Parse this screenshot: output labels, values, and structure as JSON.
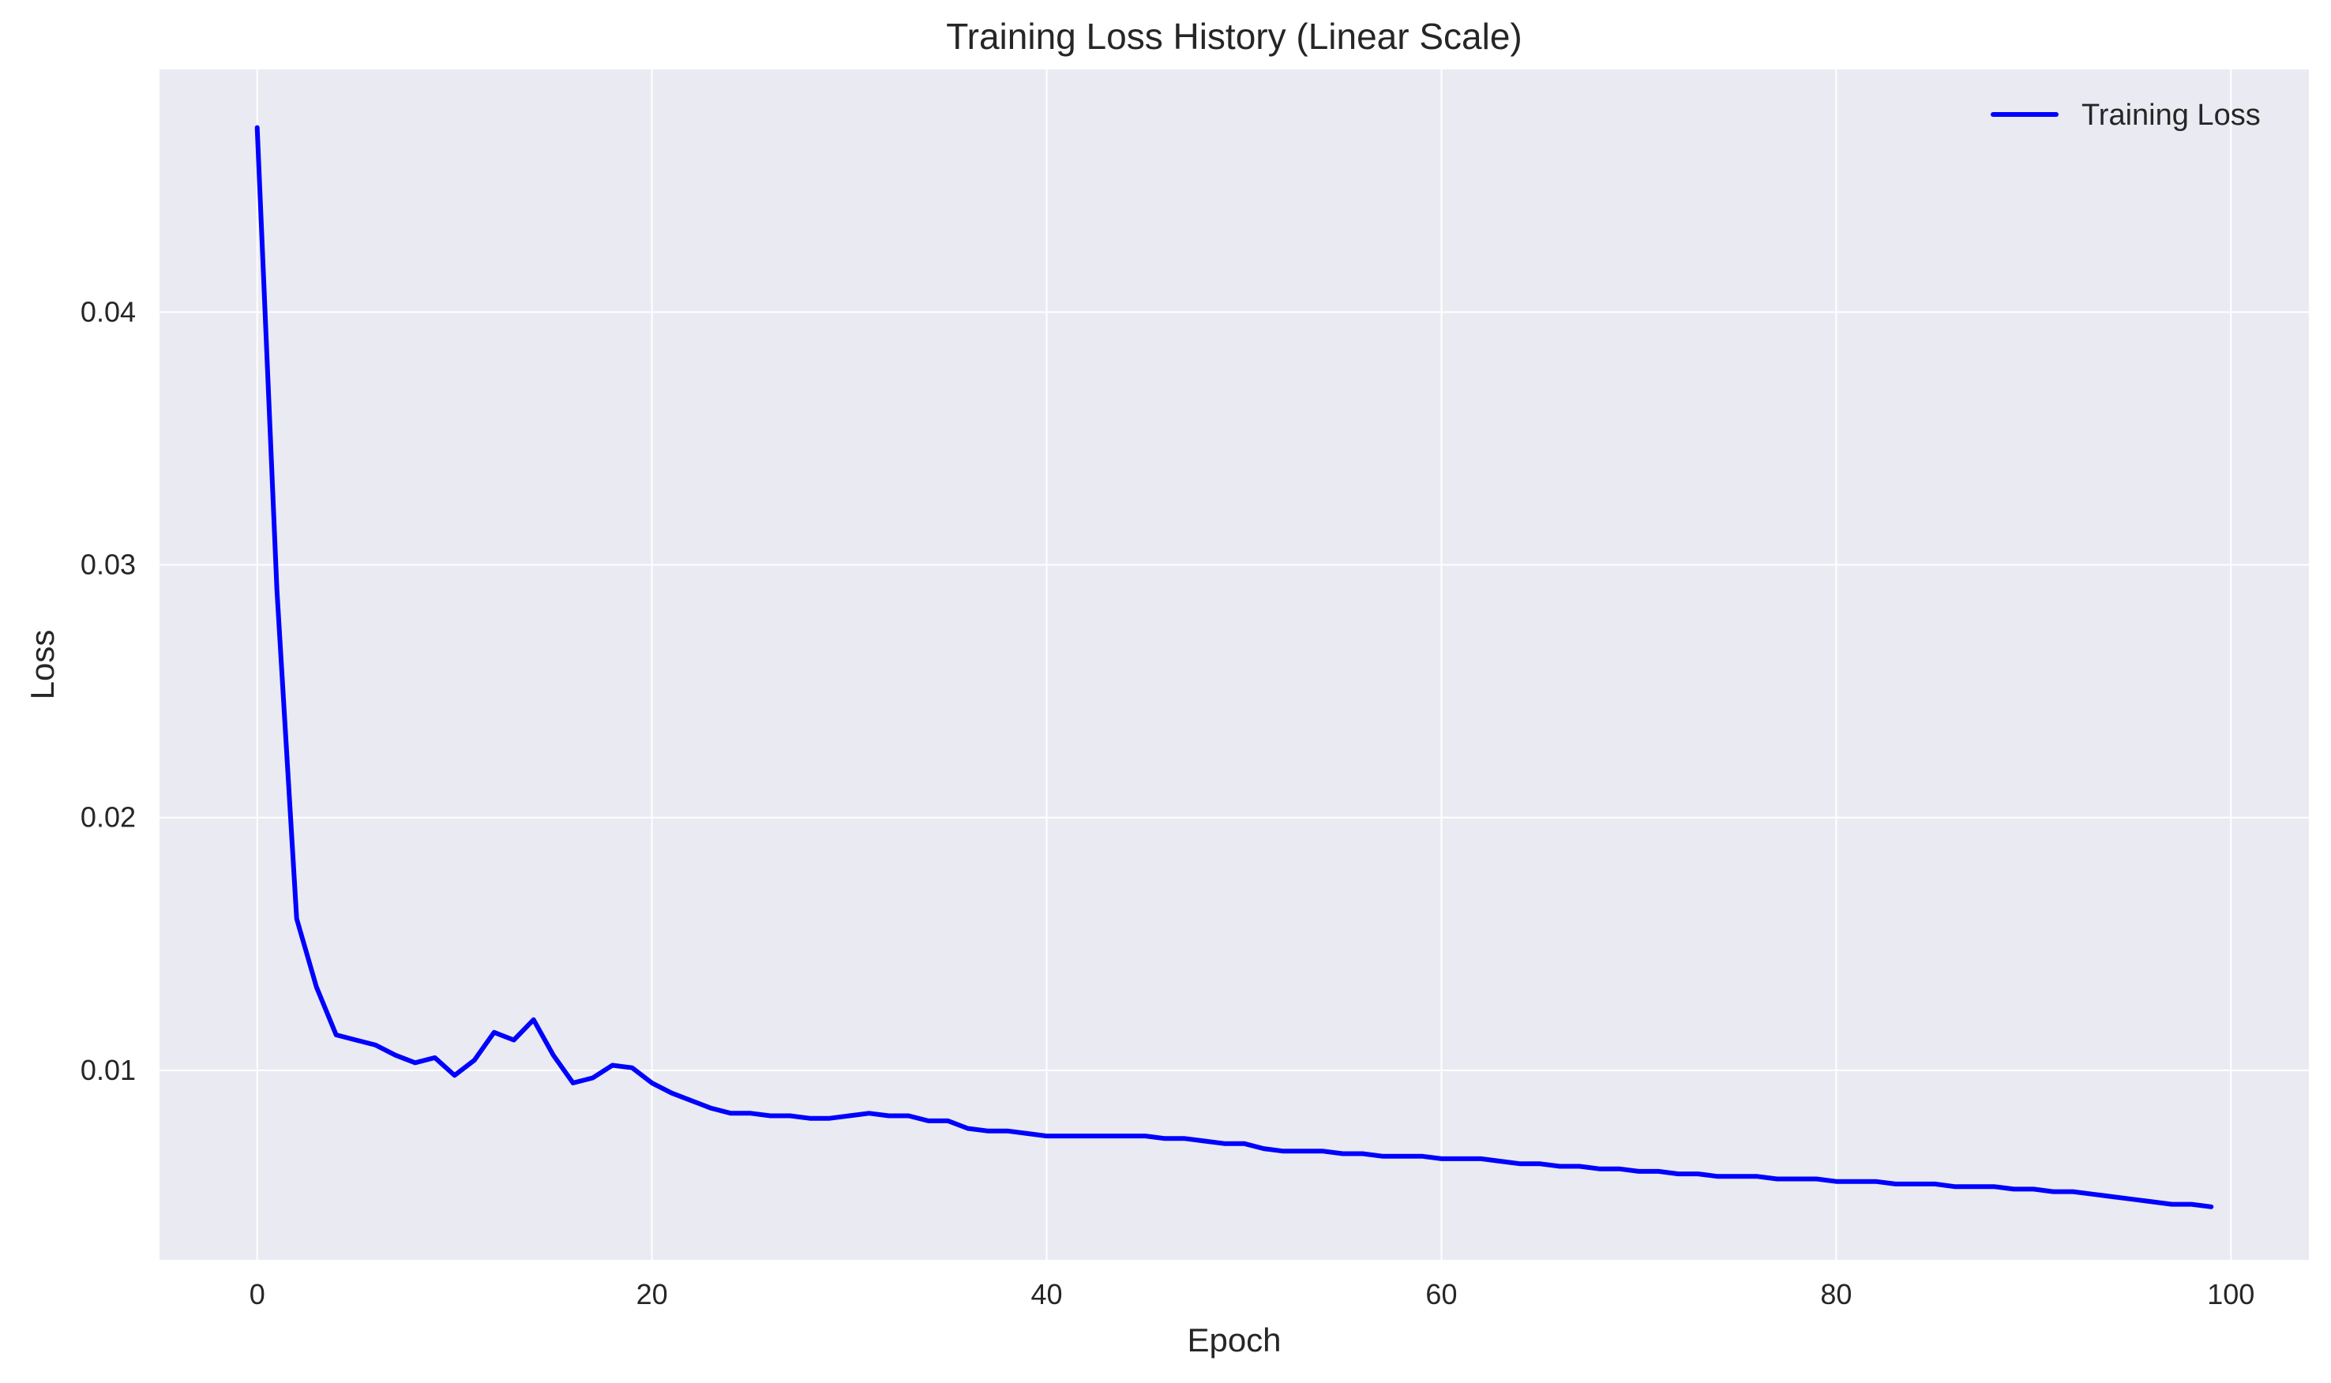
{
  "chart_data": {
    "type": "line",
    "title": "Training Loss History (Linear Scale)",
    "xlabel": "Epoch",
    "ylabel": "Loss",
    "xlim": [
      -4.95,
      103.95
    ],
    "ylim": [
      0.0025,
      0.0496
    ],
    "x_ticks": [
      0,
      20,
      40,
      60,
      80,
      100
    ],
    "y_ticks": [
      0.01,
      0.02,
      0.03,
      0.04
    ],
    "x_tick_labels": [
      "0",
      "20",
      "40",
      "60",
      "80",
      "100"
    ],
    "y_tick_labels": [
      "0.01",
      "0.02",
      "0.03",
      "0.04"
    ],
    "grid": true,
    "background_color": "#eaeaf2",
    "grid_color": "#ffffff",
    "legend_position": "top-right",
    "series": [
      {
        "name": "Training Loss",
        "color": "#0000ff",
        "x": [
          0,
          1,
          2,
          3,
          4,
          5,
          6,
          7,
          8,
          9,
          10,
          11,
          12,
          13,
          14,
          15,
          16,
          17,
          18,
          19,
          20,
          21,
          22,
          23,
          24,
          25,
          26,
          27,
          28,
          29,
          30,
          31,
          32,
          33,
          34,
          35,
          36,
          37,
          38,
          39,
          40,
          41,
          42,
          43,
          44,
          45,
          46,
          47,
          48,
          49,
          50,
          51,
          52,
          53,
          54,
          55,
          56,
          57,
          58,
          59,
          60,
          61,
          62,
          63,
          64,
          65,
          66,
          67,
          68,
          69,
          70,
          71,
          72,
          73,
          74,
          75,
          76,
          77,
          78,
          79,
          80,
          81,
          82,
          83,
          84,
          85,
          86,
          87,
          88,
          89,
          90,
          91,
          92,
          93,
          94,
          95,
          96,
          97,
          98,
          99
        ],
        "values": [
          0.0473,
          0.029,
          0.016,
          0.0133,
          0.0114,
          0.0112,
          0.011,
          0.0106,
          0.0103,
          0.0105,
          0.0098,
          0.0104,
          0.0115,
          0.0112,
          0.012,
          0.0106,
          0.0095,
          0.0097,
          0.0102,
          0.0101,
          0.0095,
          0.0091,
          0.0088,
          0.0085,
          0.0083,
          0.0083,
          0.0082,
          0.0082,
          0.0081,
          0.0081,
          0.0082,
          0.0083,
          0.0082,
          0.0082,
          0.008,
          0.008,
          0.0077,
          0.0076,
          0.0076,
          0.0075,
          0.0074,
          0.0074,
          0.0074,
          0.0074,
          0.0074,
          0.0074,
          0.0073,
          0.0073,
          0.0072,
          0.0071,
          0.0071,
          0.0069,
          0.0068,
          0.0068,
          0.0068,
          0.0067,
          0.0067,
          0.0066,
          0.0066,
          0.0066,
          0.0065,
          0.0065,
          0.0065,
          0.0064,
          0.0063,
          0.0063,
          0.0062,
          0.0062,
          0.0061,
          0.0061,
          0.006,
          0.006,
          0.0059,
          0.0059,
          0.0058,
          0.0058,
          0.0058,
          0.0057,
          0.0057,
          0.0057,
          0.0056,
          0.0056,
          0.0056,
          0.0055,
          0.0055,
          0.0055,
          0.0054,
          0.0054,
          0.0054,
          0.0053,
          0.0053,
          0.0052,
          0.0052,
          0.0051,
          0.005,
          0.0049,
          0.0048,
          0.0047,
          0.0047,
          0.0046
        ]
      }
    ]
  }
}
